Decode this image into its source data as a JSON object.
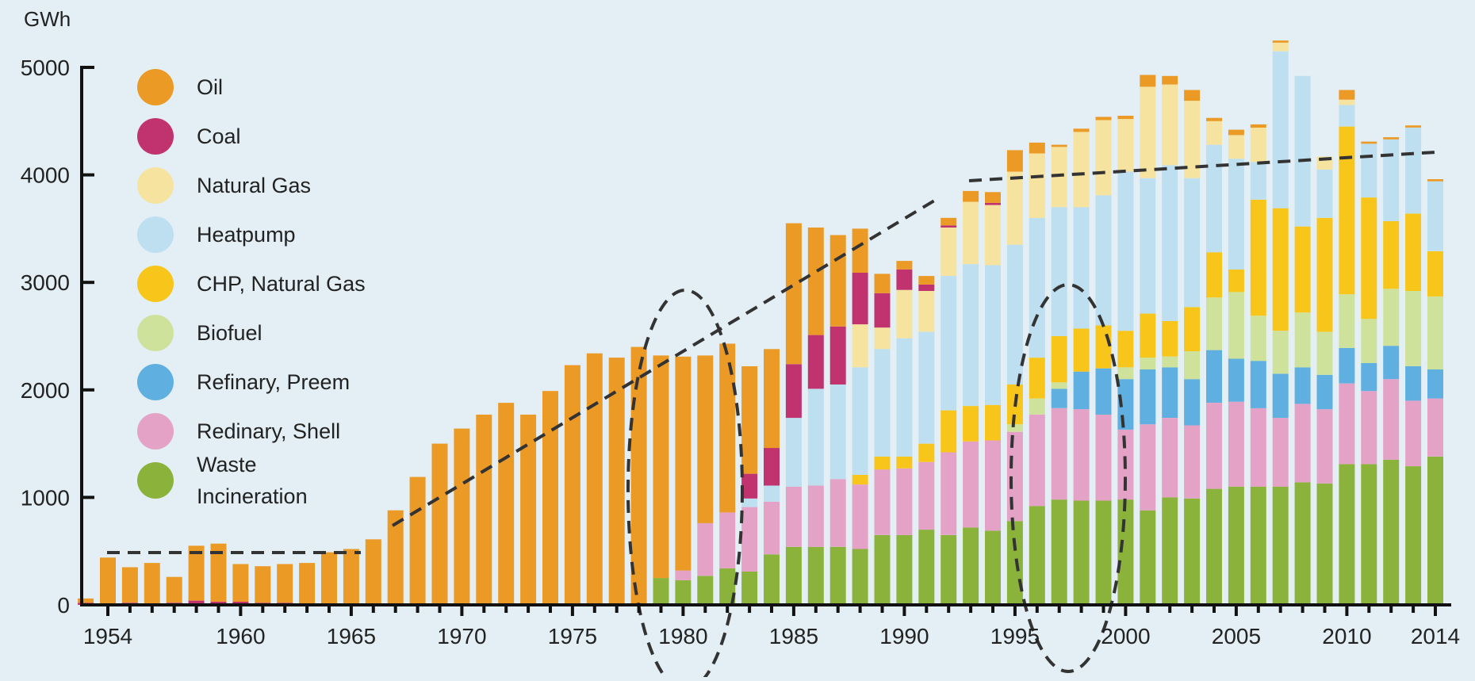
{
  "chart_data": {
    "type": "bar",
    "stacked": true,
    "ylabel": "GWh",
    "ylim": [
      0,
      5000
    ],
    "yticks": [
      0,
      1000,
      2000,
      3000,
      4000,
      5000
    ],
    "xlim": [
      1954,
      2014
    ],
    "xticks": [
      1954,
      1960,
      1965,
      1970,
      1975,
      1980,
      1985,
      1990,
      1995,
      2000,
      2005,
      2010,
      2014
    ],
    "legend_position": "top-left",
    "grid": false,
    "years": [
      1953,
      1954,
      1955,
      1956,
      1957,
      1958,
      1959,
      1960,
      1961,
      1962,
      1963,
      1964,
      1965,
      1966,
      1967,
      1968,
      1969,
      1970,
      1971,
      1972,
      1973,
      1974,
      1975,
      1976,
      1977,
      1978,
      1979,
      1980,
      1981,
      1982,
      1983,
      1984,
      1985,
      1986,
      1987,
      1988,
      1989,
      1990,
      1991,
      1992,
      1993,
      1994,
      1995,
      1996,
      1997,
      1998,
      1999,
      2000,
      2001,
      2002,
      2003,
      2004,
      2005,
      2006,
      2007,
      2008,
      2009,
      2010,
      2011,
      2012,
      2013,
      2014
    ],
    "series": [
      {
        "name": "Waste Incineration",
        "label_lines": [
          "Waste",
          "Incineration"
        ],
        "color": "#8bb33b",
        "values": [
          0,
          0,
          0,
          0,
          0,
          0,
          0,
          0,
          0,
          0,
          0,
          0,
          0,
          0,
          0,
          0,
          0,
          0,
          0,
          0,
          0,
          0,
          0,
          0,
          0,
          0,
          250,
          230,
          270,
          340,
          310,
          470,
          540,
          540,
          540,
          520,
          650,
          650,
          700,
          650,
          720,
          690,
          780,
          920,
          980,
          970,
          970,
          980,
          880,
          1000,
          990,
          1080,
          1100,
          1100,
          1100,
          1140,
          1130,
          1310,
          1310,
          1350,
          1290,
          1380
        ]
      },
      {
        "name": "Redinary, Shell",
        "color": "#e4a2c6",
        "values": [
          0,
          0,
          0,
          0,
          0,
          0,
          0,
          0,
          0,
          0,
          0,
          0,
          0,
          0,
          0,
          0,
          0,
          0,
          0,
          0,
          0,
          0,
          0,
          0,
          0,
          0,
          0,
          90,
          490,
          520,
          600,
          490,
          560,
          570,
          630,
          600,
          610,
          620,
          630,
          770,
          800,
          840,
          830,
          850,
          850,
          850,
          800,
          650,
          800,
          740,
          680,
          800,
          790,
          730,
          640,
          730,
          690,
          750,
          680,
          750,
          610,
          540
        ]
      },
      {
        "name": "Refinary, Preem",
        "color": "#5fb0e0",
        "values": [
          0,
          0,
          0,
          0,
          0,
          0,
          0,
          0,
          0,
          0,
          0,
          0,
          0,
          0,
          0,
          0,
          0,
          0,
          0,
          0,
          0,
          0,
          0,
          0,
          0,
          0,
          0,
          0,
          0,
          0,
          0,
          0,
          0,
          0,
          0,
          0,
          0,
          0,
          0,
          0,
          0,
          0,
          0,
          0,
          180,
          350,
          430,
          470,
          510,
          470,
          430,
          490,
          400,
          440,
          410,
          340,
          320,
          330,
          260,
          310,
          320,
          270
        ]
      },
      {
        "name": "Biofuel",
        "color": "#cfe29c",
        "values": [
          0,
          0,
          0,
          0,
          0,
          0,
          0,
          0,
          0,
          0,
          0,
          0,
          0,
          0,
          0,
          0,
          0,
          0,
          0,
          0,
          0,
          0,
          0,
          0,
          0,
          0,
          0,
          0,
          0,
          0,
          0,
          0,
          0,
          0,
          0,
          0,
          0,
          0,
          0,
          0,
          0,
          0,
          70,
          150,
          60,
          0,
          0,
          110,
          110,
          100,
          260,
          490,
          620,
          420,
          400,
          510,
          400,
          500,
          410,
          530,
          700,
          680
        ]
      },
      {
        "name": "CHP, Natural Gas",
        "color": "#f8c61a",
        "values": [
          0,
          0,
          0,
          0,
          0,
          0,
          0,
          0,
          0,
          0,
          0,
          0,
          0,
          0,
          0,
          0,
          0,
          0,
          0,
          0,
          0,
          0,
          0,
          0,
          0,
          0,
          0,
          0,
          0,
          0,
          0,
          0,
          0,
          0,
          0,
          90,
          120,
          110,
          170,
          390,
          330,
          330,
          370,
          380,
          430,
          400,
          400,
          340,
          410,
          330,
          410,
          420,
          210,
          1080,
          1140,
          800,
          1060,
          1560,
          1130,
          630,
          720,
          420
        ]
      },
      {
        "name": "Heatpump",
        "color": "#bedff0",
        "values": [
          0,
          0,
          0,
          0,
          0,
          0,
          0,
          0,
          0,
          0,
          0,
          0,
          0,
          0,
          0,
          0,
          0,
          0,
          0,
          0,
          0,
          0,
          0,
          0,
          0,
          0,
          0,
          0,
          0,
          0,
          80,
          150,
          640,
          900,
          880,
          1000,
          1000,
          1100,
          1040,
          1250,
          1320,
          1300,
          1300,
          1300,
          1200,
          1130,
          1210,
          1480,
          1260,
          1450,
          1200,
          1000,
          1030,
          350,
          1460,
          1400,
          450,
          200,
          500,
          760,
          800,
          650
        ]
      },
      {
        "name": "Natural Gas",
        "color": "#f5e39f",
        "values": [
          0,
          0,
          0,
          0,
          0,
          0,
          0,
          0,
          0,
          0,
          0,
          0,
          0,
          0,
          0,
          0,
          0,
          0,
          0,
          0,
          0,
          0,
          0,
          0,
          0,
          0,
          0,
          0,
          0,
          0,
          0,
          0,
          0,
          0,
          0,
          400,
          200,
          450,
          380,
          450,
          580,
          560,
          680,
          600,
          560,
          700,
          700,
          490,
          850,
          750,
          720,
          220,
          220,
          320,
          80,
          0,
          120,
          50,
          0,
          0,
          0,
          0
        ]
      },
      {
        "name": "Coal",
        "color": "#c0336f",
        "values": [
          20,
          0,
          20,
          0,
          20,
          40,
          30,
          30,
          20,
          20,
          0,
          0,
          0,
          0,
          0,
          0,
          0,
          0,
          0,
          0,
          0,
          0,
          0,
          0,
          0,
          0,
          0,
          0,
          0,
          0,
          230,
          350,
          500,
          500,
          540,
          480,
          320,
          190,
          60,
          20,
          0,
          20,
          0,
          0,
          0,
          0,
          0,
          0,
          0,
          0,
          0,
          0,
          0,
          0,
          0,
          0,
          0,
          0,
          0,
          0,
          0,
          0
        ]
      },
      {
        "name": "Oil",
        "color": "#eb9a26",
        "values": [
          40,
          440,
          330,
          390,
          240,
          510,
          540,
          350,
          340,
          360,
          390,
          490,
          520,
          610,
          880,
          1190,
          1500,
          1640,
          1770,
          1880,
          1770,
          1990,
          2230,
          2340,
          2300,
          2400,
          2070,
          1990,
          1560,
          1570,
          1000,
          920,
          1310,
          1000,
          850,
          410,
          180,
          80,
          80,
          70,
          100,
          100,
          200,
          100,
          20,
          30,
          30,
          30,
          110,
          80,
          100,
          30,
          50,
          30,
          20,
          0,
          0,
          90,
          20,
          20,
          20,
          20
        ]
      }
    ]
  },
  "legend_order": [
    "Oil",
    "Coal",
    "Natural Gas",
    "Heatpump",
    "CHP, Natural Gas",
    "Biofuel",
    "Refinary, Preem",
    "Redinary, Shell",
    "Waste Incineration"
  ]
}
